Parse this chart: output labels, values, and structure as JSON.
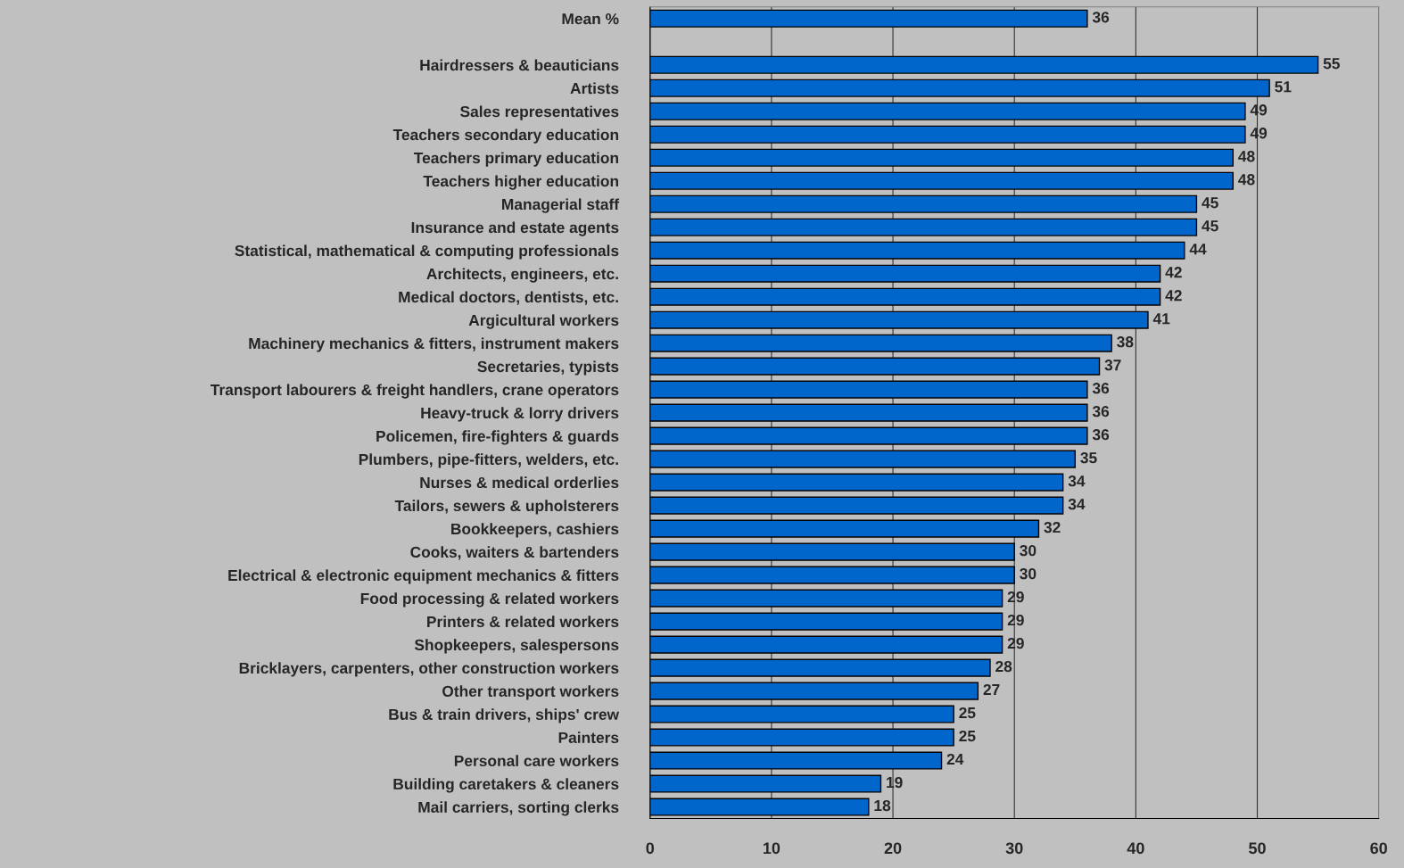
{
  "chart_data": {
    "type": "bar",
    "orientation": "horizontal",
    "categories": [
      "Mean %",
      null,
      "Hairdressers & beauticians",
      "Artists",
      "Sales representatives",
      "Teachers secondary education",
      "Teachers primary education",
      "Teachers higher education",
      "Managerial staff",
      "Insurance and estate agents",
      "Statistical, mathematical & computing professionals",
      "Architects, engineers, etc.",
      "Medical doctors, dentists, etc.",
      "Argicultural workers",
      "Machinery mechanics & fitters, instrument makers",
      "Secretaries, typists",
      "Transport labourers & freight handlers, crane operators",
      "Heavy-truck & lorry drivers",
      "Policemen, fire-fighters & guards",
      "Plumbers, pipe-fitters, welders, etc.",
      "Nurses & medical orderlies",
      "Tailors, sewers & upholsterers",
      "Bookkeepers, cashiers",
      "Cooks, waiters & bartenders",
      "Electrical & electronic equipment mechanics & fitters",
      "Food processing & related workers",
      "Printers & related workers",
      "Shopkeepers, salespersons",
      "Bricklayers, carpenters, other construction workers",
      "Other transport workers",
      "Bus & train drivers, ships' crew",
      "Painters",
      "Personal care workers",
      "Building caretakers & cleaners",
      "Mail carriers, sorting clerks"
    ],
    "values": [
      36,
      null,
      55,
      51,
      49,
      49,
      48,
      48,
      45,
      45,
      44,
      42,
      42,
      41,
      38,
      37,
      36,
      36,
      36,
      35,
      34,
      34,
      32,
      30,
      30,
      29,
      29,
      29,
      28,
      27,
      25,
      25,
      24,
      19,
      18
    ],
    "color": "#0066cc",
    "xlim": [
      0,
      60
    ],
    "xticks": [
      0,
      10,
      20,
      30,
      40,
      50,
      60
    ],
    "grid": "x",
    "data_labels": true,
    "legend": false
  }
}
